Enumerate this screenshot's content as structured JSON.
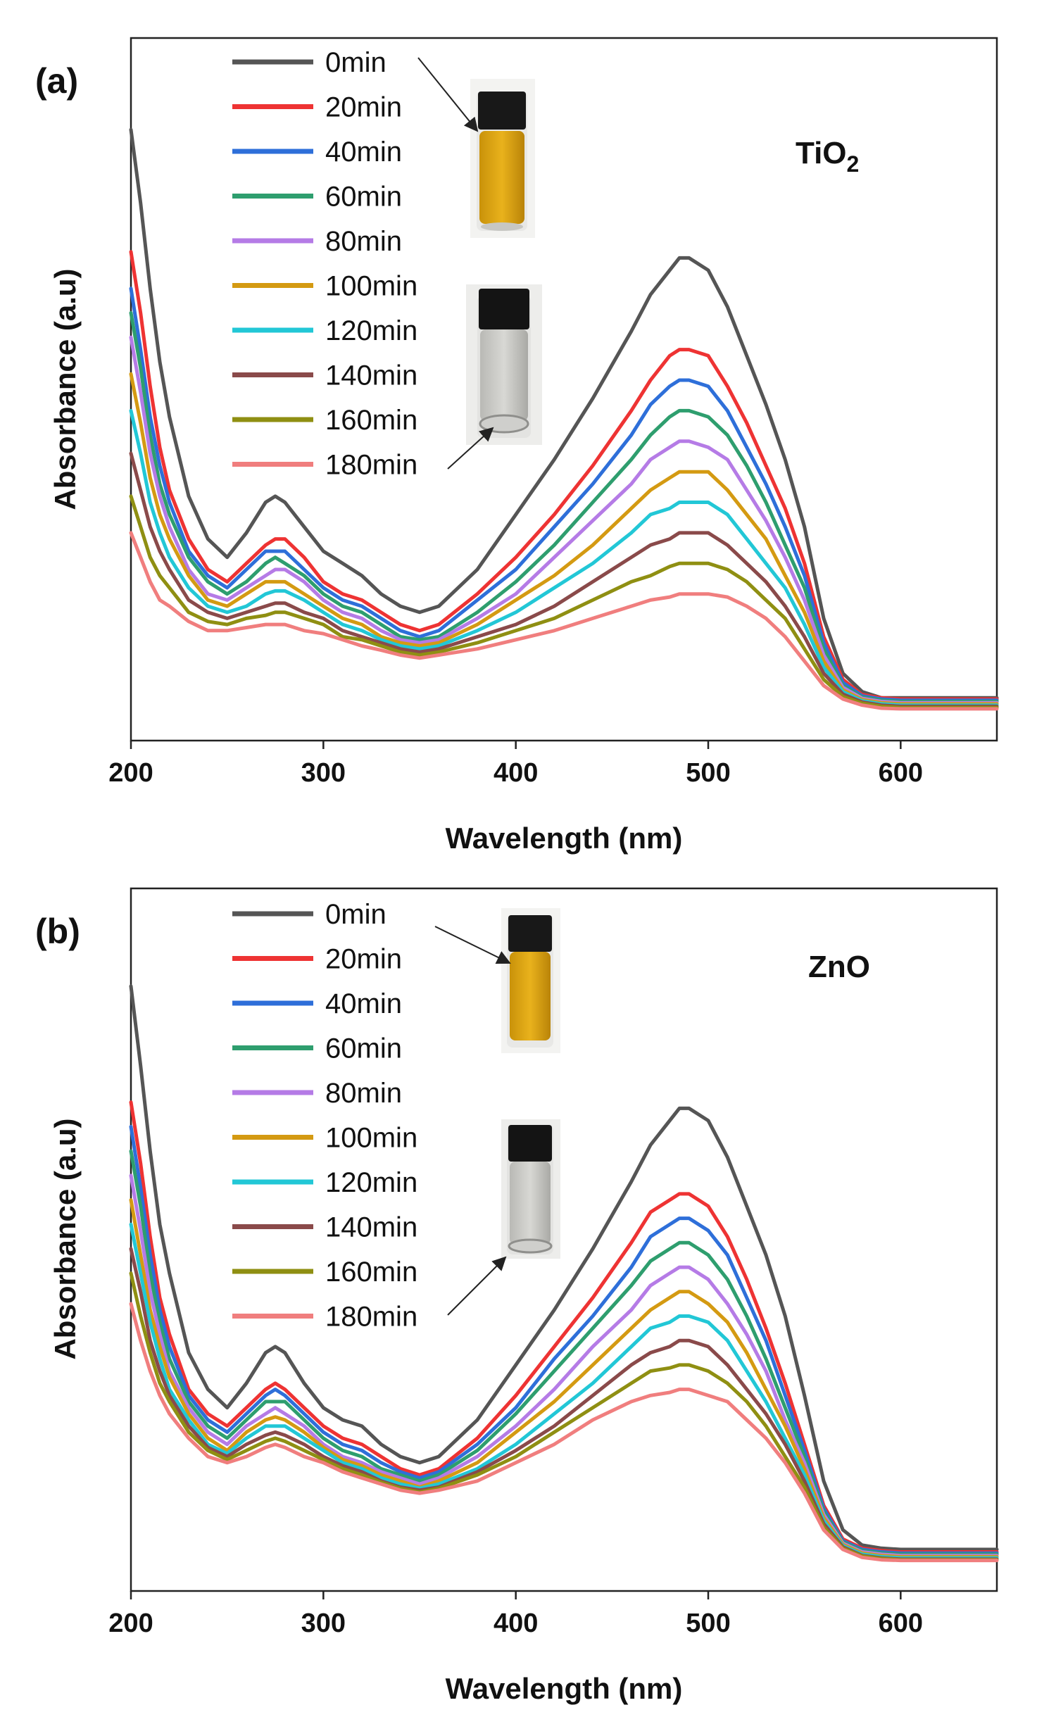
{
  "figure": {
    "colors": {
      "0min": "#555555",
      "20min": "#ee3333",
      "40min": "#2e6fd9",
      "60min": "#2e9e6e",
      "80min": "#b57be6",
      "100min": "#d49a12",
      "120min": "#22c7d6",
      "140min": "#8a4a4a",
      "160min": "#8f8f12",
      "180min": "#f07e7e"
    }
  },
  "chart_data": [
    {
      "type": "line",
      "panel_label": "(a)",
      "material": "TiO2",
      "material_base": "TiO",
      "material_sub": "2",
      "xlabel": "Wavelength (nm)",
      "ylabel": "Absorbance (a.u)",
      "xlim": [
        200,
        650
      ],
      "xticks": [
        "200",
        "300",
        "400",
        "500",
        "600"
      ],
      "ylim": [
        0,
        1.15
      ],
      "yticks": "none",
      "legend": "top-left",
      "insets": [
        "vial-before-icon",
        "vial-after-icon"
      ],
      "x": [
        200,
        205,
        210,
        215,
        220,
        230,
        240,
        250,
        260,
        270,
        275,
        280,
        290,
        300,
        310,
        320,
        330,
        340,
        350,
        360,
        380,
        400,
        420,
        440,
        460,
        470,
        480,
        485,
        490,
        500,
        510,
        520,
        530,
        540,
        550,
        560,
        570,
        580,
        590,
        600,
        650
      ],
      "series": [
        {
          "name": "0min",
          "peak": 0.79,
          "values": [
            1.0,
            0.88,
            0.74,
            0.62,
            0.53,
            0.4,
            0.33,
            0.3,
            0.34,
            0.39,
            0.4,
            0.39,
            0.35,
            0.31,
            0.29,
            0.27,
            0.24,
            0.22,
            0.21,
            0.22,
            0.28,
            0.37,
            0.46,
            0.56,
            0.67,
            0.73,
            0.77,
            0.79,
            0.79,
            0.77,
            0.71,
            0.63,
            0.55,
            0.46,
            0.35,
            0.2,
            0.11,
            0.08,
            0.07,
            0.07,
            0.07
          ]
        },
        {
          "name": "20min",
          "peak": 0.64,
          "values": [
            0.8,
            0.7,
            0.58,
            0.48,
            0.41,
            0.33,
            0.28,
            0.26,
            0.29,
            0.32,
            0.33,
            0.33,
            0.3,
            0.26,
            0.24,
            0.23,
            0.21,
            0.19,
            0.18,
            0.19,
            0.24,
            0.3,
            0.37,
            0.45,
            0.54,
            0.59,
            0.63,
            0.64,
            0.64,
            0.63,
            0.58,
            0.52,
            0.45,
            0.38,
            0.29,
            0.17,
            0.1,
            0.075,
            0.07,
            0.068,
            0.068
          ]
        },
        {
          "name": "40min",
          "peak": 0.59,
          "values": [
            0.74,
            0.64,
            0.53,
            0.45,
            0.39,
            0.31,
            0.27,
            0.25,
            0.28,
            0.31,
            0.31,
            0.31,
            0.28,
            0.25,
            0.23,
            0.22,
            0.2,
            0.18,
            0.17,
            0.18,
            0.23,
            0.28,
            0.35,
            0.42,
            0.5,
            0.55,
            0.58,
            0.59,
            0.59,
            0.58,
            0.54,
            0.48,
            0.42,
            0.35,
            0.27,
            0.16,
            0.095,
            0.073,
            0.068,
            0.066,
            0.066
          ]
        },
        {
          "name": "60min",
          "peak": 0.54,
          "values": [
            0.7,
            0.61,
            0.5,
            0.42,
            0.37,
            0.3,
            0.26,
            0.24,
            0.26,
            0.29,
            0.3,
            0.29,
            0.27,
            0.24,
            0.22,
            0.21,
            0.19,
            0.17,
            0.165,
            0.17,
            0.21,
            0.26,
            0.32,
            0.39,
            0.46,
            0.5,
            0.53,
            0.54,
            0.54,
            0.53,
            0.5,
            0.45,
            0.39,
            0.32,
            0.25,
            0.15,
            0.09,
            0.071,
            0.066,
            0.064,
            0.064
          ]
        },
        {
          "name": "80min",
          "peak": 0.49,
          "values": [
            0.66,
            0.57,
            0.47,
            0.4,
            0.35,
            0.28,
            0.24,
            0.23,
            0.25,
            0.27,
            0.28,
            0.28,
            0.26,
            0.23,
            0.21,
            0.2,
            0.18,
            0.165,
            0.16,
            0.165,
            0.2,
            0.24,
            0.3,
            0.36,
            0.42,
            0.46,
            0.48,
            0.49,
            0.49,
            0.48,
            0.46,
            0.41,
            0.36,
            0.3,
            0.23,
            0.14,
            0.087,
            0.069,
            0.064,
            0.062,
            0.062
          ]
        },
        {
          "name": "100min",
          "peak": 0.44,
          "values": [
            0.6,
            0.52,
            0.43,
            0.37,
            0.33,
            0.27,
            0.23,
            0.22,
            0.24,
            0.26,
            0.26,
            0.26,
            0.24,
            0.22,
            0.2,
            0.19,
            0.17,
            0.16,
            0.155,
            0.16,
            0.19,
            0.23,
            0.27,
            0.32,
            0.38,
            0.41,
            0.43,
            0.44,
            0.44,
            0.44,
            0.41,
            0.37,
            0.33,
            0.27,
            0.21,
            0.13,
            0.083,
            0.067,
            0.062,
            0.06,
            0.06
          ]
        },
        {
          "name": "120min",
          "peak": 0.39,
          "values": [
            0.54,
            0.47,
            0.39,
            0.34,
            0.3,
            0.25,
            0.22,
            0.21,
            0.22,
            0.24,
            0.245,
            0.245,
            0.23,
            0.21,
            0.19,
            0.18,
            0.165,
            0.155,
            0.15,
            0.155,
            0.18,
            0.21,
            0.25,
            0.29,
            0.34,
            0.37,
            0.38,
            0.39,
            0.39,
            0.39,
            0.37,
            0.33,
            0.29,
            0.25,
            0.19,
            0.12,
            0.08,
            0.065,
            0.06,
            0.058,
            0.058
          ]
        },
        {
          "name": "140min",
          "peak": 0.34,
          "values": [
            0.47,
            0.41,
            0.35,
            0.31,
            0.28,
            0.23,
            0.21,
            0.2,
            0.21,
            0.22,
            0.225,
            0.225,
            0.21,
            0.2,
            0.18,
            0.17,
            0.16,
            0.15,
            0.145,
            0.15,
            0.17,
            0.19,
            0.22,
            0.26,
            0.3,
            0.32,
            0.33,
            0.34,
            0.34,
            0.34,
            0.32,
            0.29,
            0.26,
            0.22,
            0.17,
            0.11,
            0.076,
            0.063,
            0.058,
            0.056,
            0.056
          ]
        },
        {
          "name": "160min",
          "peak": 0.29,
          "values": [
            0.4,
            0.35,
            0.3,
            0.27,
            0.25,
            0.21,
            0.195,
            0.19,
            0.2,
            0.205,
            0.21,
            0.21,
            0.2,
            0.19,
            0.17,
            0.165,
            0.155,
            0.145,
            0.14,
            0.145,
            0.16,
            0.18,
            0.2,
            0.23,
            0.26,
            0.27,
            0.285,
            0.29,
            0.29,
            0.29,
            0.28,
            0.26,
            0.23,
            0.2,
            0.15,
            0.1,
            0.072,
            0.061,
            0.056,
            0.054,
            0.054
          ]
        },
        {
          "name": "180min",
          "peak": 0.24,
          "values": [
            0.34,
            0.3,
            0.26,
            0.23,
            0.22,
            0.195,
            0.18,
            0.18,
            0.185,
            0.19,
            0.19,
            0.19,
            0.18,
            0.175,
            0.165,
            0.155,
            0.148,
            0.14,
            0.135,
            0.14,
            0.15,
            0.165,
            0.18,
            0.2,
            0.22,
            0.23,
            0.235,
            0.24,
            0.24,
            0.24,
            0.235,
            0.22,
            0.2,
            0.17,
            0.13,
            0.09,
            0.068,
            0.058,
            0.053,
            0.052,
            0.052
          ]
        }
      ]
    },
    {
      "type": "line",
      "panel_label": "(b)",
      "material": "ZnO",
      "material_base": "ZnO",
      "material_sub": "",
      "xlabel": "Wavelength (nm)",
      "ylabel": "Absorbance (a.u)",
      "xlim": [
        200,
        650
      ],
      "xticks": [
        "200",
        "300",
        "400",
        "500",
        "600"
      ],
      "ylim": [
        0,
        1.15
      ],
      "yticks": "none",
      "legend": "top-left",
      "insets": [
        "vial-before-icon",
        "vial-after-icon"
      ],
      "x": [
        200,
        205,
        210,
        215,
        220,
        230,
        240,
        250,
        260,
        270,
        275,
        280,
        290,
        300,
        310,
        320,
        330,
        340,
        350,
        360,
        380,
        400,
        420,
        440,
        460,
        470,
        480,
        485,
        490,
        500,
        510,
        520,
        530,
        540,
        550,
        560,
        570,
        580,
        590,
        600,
        650
      ],
      "series": [
        {
          "name": "0min",
          "peak": 0.79,
          "values": [
            0.99,
            0.86,
            0.72,
            0.6,
            0.52,
            0.39,
            0.33,
            0.3,
            0.34,
            0.39,
            0.4,
            0.39,
            0.34,
            0.3,
            0.28,
            0.27,
            0.24,
            0.22,
            0.21,
            0.22,
            0.28,
            0.37,
            0.46,
            0.56,
            0.67,
            0.73,
            0.77,
            0.79,
            0.79,
            0.77,
            0.71,
            0.63,
            0.55,
            0.45,
            0.32,
            0.18,
            0.1,
            0.075,
            0.07,
            0.068,
            0.068
          ]
        },
        {
          "name": "20min",
          "peak": 0.65,
          "values": [
            0.8,
            0.7,
            0.58,
            0.48,
            0.42,
            0.33,
            0.29,
            0.27,
            0.3,
            0.33,
            0.34,
            0.33,
            0.3,
            0.27,
            0.25,
            0.24,
            0.22,
            0.2,
            0.19,
            0.2,
            0.25,
            0.32,
            0.4,
            0.48,
            0.57,
            0.62,
            0.64,
            0.65,
            0.65,
            0.63,
            0.58,
            0.51,
            0.43,
            0.34,
            0.24,
            0.14,
            0.085,
            0.07,
            0.066,
            0.064,
            0.064
          ]
        },
        {
          "name": "40min",
          "peak": 0.61,
          "values": [
            0.76,
            0.66,
            0.55,
            0.46,
            0.4,
            0.32,
            0.28,
            0.26,
            0.29,
            0.32,
            0.33,
            0.32,
            0.29,
            0.26,
            0.24,
            0.23,
            0.21,
            0.195,
            0.185,
            0.195,
            0.24,
            0.3,
            0.38,
            0.45,
            0.53,
            0.58,
            0.6,
            0.61,
            0.61,
            0.59,
            0.55,
            0.48,
            0.41,
            0.32,
            0.23,
            0.135,
            0.082,
            0.068,
            0.064,
            0.062,
            0.062
          ]
        },
        {
          "name": "60min",
          "peak": 0.57,
          "values": [
            0.72,
            0.63,
            0.52,
            0.44,
            0.38,
            0.31,
            0.27,
            0.25,
            0.28,
            0.31,
            0.31,
            0.31,
            0.28,
            0.25,
            0.23,
            0.22,
            0.2,
            0.19,
            0.18,
            0.19,
            0.23,
            0.29,
            0.36,
            0.43,
            0.5,
            0.54,
            0.56,
            0.57,
            0.57,
            0.55,
            0.51,
            0.45,
            0.38,
            0.3,
            0.22,
            0.13,
            0.08,
            0.066,
            0.062,
            0.06,
            0.06
          ]
        },
        {
          "name": "80min",
          "peak": 0.53,
          "values": [
            0.68,
            0.59,
            0.49,
            0.42,
            0.36,
            0.3,
            0.26,
            0.24,
            0.27,
            0.29,
            0.3,
            0.29,
            0.27,
            0.24,
            0.22,
            0.21,
            0.195,
            0.185,
            0.175,
            0.185,
            0.22,
            0.27,
            0.33,
            0.4,
            0.46,
            0.5,
            0.52,
            0.53,
            0.53,
            0.51,
            0.47,
            0.42,
            0.36,
            0.28,
            0.21,
            0.125,
            0.078,
            0.064,
            0.06,
            0.058,
            0.058
          ]
        },
        {
          "name": "100min",
          "peak": 0.49,
          "values": [
            0.64,
            0.55,
            0.46,
            0.4,
            0.35,
            0.29,
            0.25,
            0.23,
            0.26,
            0.28,
            0.285,
            0.28,
            0.26,
            0.235,
            0.215,
            0.205,
            0.19,
            0.18,
            0.17,
            0.18,
            0.21,
            0.26,
            0.31,
            0.37,
            0.43,
            0.46,
            0.48,
            0.49,
            0.49,
            0.47,
            0.44,
            0.39,
            0.33,
            0.27,
            0.2,
            0.12,
            0.076,
            0.062,
            0.058,
            0.056,
            0.056
          ]
        },
        {
          "name": "120min",
          "peak": 0.45,
          "values": [
            0.6,
            0.52,
            0.44,
            0.38,
            0.33,
            0.28,
            0.24,
            0.225,
            0.25,
            0.27,
            0.27,
            0.27,
            0.25,
            0.23,
            0.21,
            0.2,
            0.185,
            0.175,
            0.168,
            0.175,
            0.2,
            0.24,
            0.29,
            0.34,
            0.4,
            0.43,
            0.44,
            0.45,
            0.45,
            0.44,
            0.41,
            0.36,
            0.31,
            0.25,
            0.19,
            0.115,
            0.074,
            0.06,
            0.056,
            0.054,
            0.054
          ]
        },
        {
          "name": "140min",
          "peak": 0.41,
          "values": [
            0.56,
            0.49,
            0.41,
            0.36,
            0.32,
            0.27,
            0.235,
            0.22,
            0.24,
            0.255,
            0.26,
            0.255,
            0.24,
            0.22,
            0.205,
            0.195,
            0.18,
            0.17,
            0.165,
            0.17,
            0.195,
            0.23,
            0.27,
            0.32,
            0.37,
            0.39,
            0.4,
            0.41,
            0.41,
            0.4,
            0.37,
            0.33,
            0.29,
            0.24,
            0.18,
            0.11,
            0.072,
            0.058,
            0.054,
            0.052,
            0.052
          ]
        },
        {
          "name": "160min",
          "peak": 0.37,
          "values": [
            0.52,
            0.45,
            0.39,
            0.34,
            0.31,
            0.26,
            0.23,
            0.215,
            0.23,
            0.245,
            0.25,
            0.245,
            0.23,
            0.215,
            0.2,
            0.19,
            0.178,
            0.168,
            0.162,
            0.168,
            0.19,
            0.22,
            0.26,
            0.3,
            0.34,
            0.36,
            0.365,
            0.37,
            0.37,
            0.36,
            0.34,
            0.31,
            0.27,
            0.22,
            0.17,
            0.105,
            0.07,
            0.057,
            0.053,
            0.051,
            0.051
          ]
        },
        {
          "name": "180min",
          "peak": 0.33,
          "values": [
            0.47,
            0.41,
            0.36,
            0.32,
            0.29,
            0.25,
            0.22,
            0.21,
            0.22,
            0.235,
            0.24,
            0.235,
            0.22,
            0.21,
            0.195,
            0.185,
            0.175,
            0.165,
            0.16,
            0.165,
            0.18,
            0.21,
            0.24,
            0.28,
            0.31,
            0.32,
            0.325,
            0.33,
            0.33,
            0.32,
            0.31,
            0.28,
            0.25,
            0.21,
            0.16,
            0.1,
            0.068,
            0.055,
            0.051,
            0.05,
            0.05
          ]
        }
      ]
    }
  ]
}
